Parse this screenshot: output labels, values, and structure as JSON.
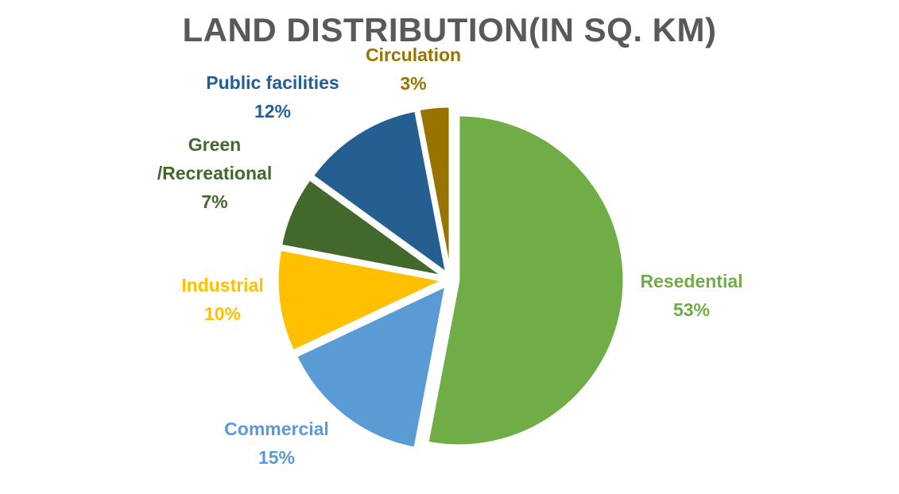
{
  "chart_data": {
    "type": "pie",
    "title": "LAND DISTRIBUTION(IN SQ. KM)",
    "legend": "none",
    "slices": [
      {
        "name": "Resedential",
        "label_lines": [
          "Resedential"
        ],
        "percent_label": "53%",
        "value": 53,
        "color": "#70AD47"
      },
      {
        "name": "Commercial",
        "label_lines": [
          "Commercial"
        ],
        "percent_label": "15%",
        "value": 15,
        "color": "#5B9BD5"
      },
      {
        "name": "Industrial",
        "label_lines": [
          "Industrial"
        ],
        "percent_label": "10%",
        "value": 10,
        "color": "#FFC000"
      },
      {
        "name": "Green /Recreational",
        "label_lines": [
          "Green",
          "/Recreational"
        ],
        "percent_label": "7%",
        "value": 7,
        "color": "#43682B"
      },
      {
        "name": "Public facilities",
        "label_lines": [
          "Public facilities"
        ],
        "percent_label": "12%",
        "value": 12,
        "color": "#255E91"
      },
      {
        "name": "Circulation",
        "label_lines": [
          "Circulation"
        ],
        "percent_label": "3%",
        "value": 3,
        "color": "#997300"
      }
    ]
  }
}
